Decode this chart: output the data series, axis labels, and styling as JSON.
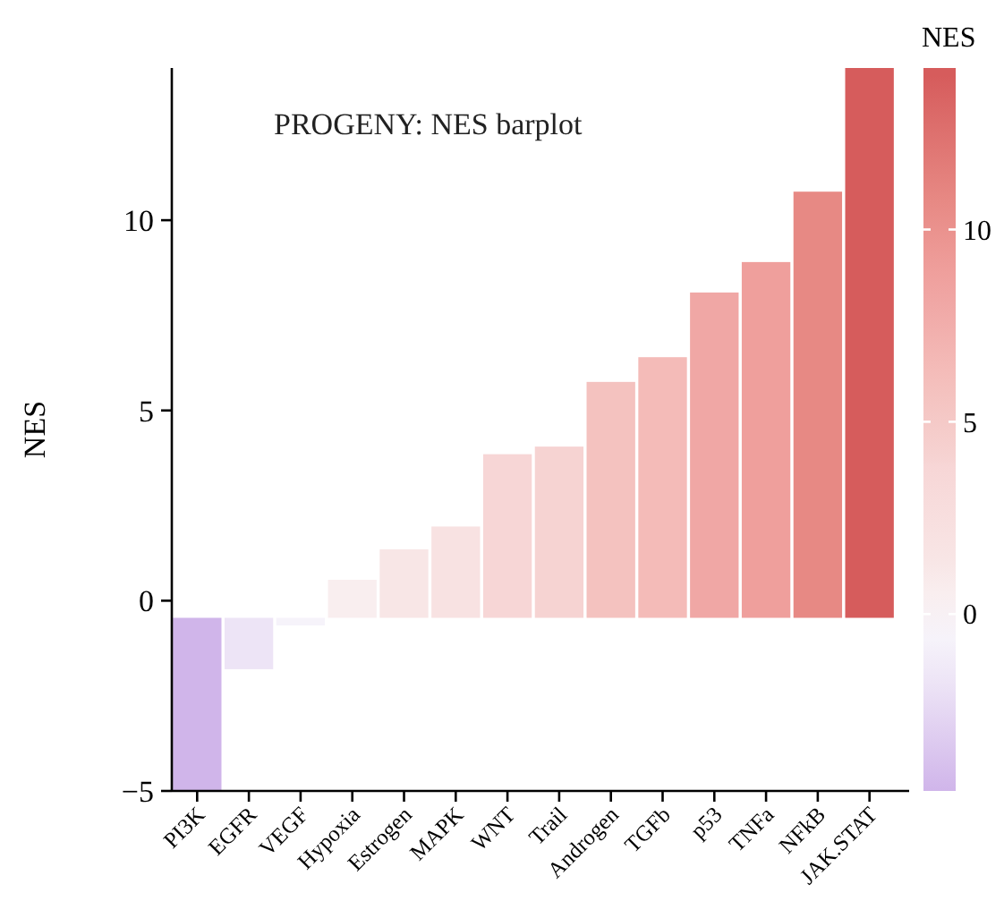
{
  "chart_data": {
    "type": "bar",
    "title": "PROGENY: NES barplot",
    "ylabel": "NES",
    "clabel": "NES",
    "categories": [
      "PI3K",
      "EGFR",
      "VEGF",
      "Hypoxia",
      "Estrogen",
      "MAPK",
      "WNT",
      "Trail",
      "Androgen",
      "TGFb",
      "p53",
      "TNFa",
      "NFkB",
      "JAK.STAT"
    ],
    "values": [
      4.55,
      1.35,
      0.2,
      1.0,
      1.8,
      2.4,
      4.3,
      4.5,
      6.2,
      6.85,
      8.55,
      9.35,
      11.2,
      14.45
    ],
    "base": [
      -5,
      -1.8,
      -0.65,
      -0.45,
      -0.45,
      -0.45,
      -0.45,
      -0.45,
      -0.45,
      -0.45,
      -0.45,
      -0.45,
      -0.45,
      -0.45
    ],
    "colors": [
      "#d0b5ea",
      "#ede4f6",
      "#f6f3fa",
      "#f9eeef",
      "#f8e6e6",
      "#f8e2e2",
      "#f7d6d6",
      "#f6d3d2",
      "#f4c2bf",
      "#f4bbb8",
      "#f0a7a5",
      "#ef9f9c",
      "#e78984",
      "#d65c5c"
    ],
    "ylim": [
      -5,
      14
    ],
    "yticks": [
      -5,
      0,
      5,
      10
    ],
    "clim": [
      -4.6,
      14.2
    ],
    "cticks": [
      0,
      5,
      10
    ]
  }
}
